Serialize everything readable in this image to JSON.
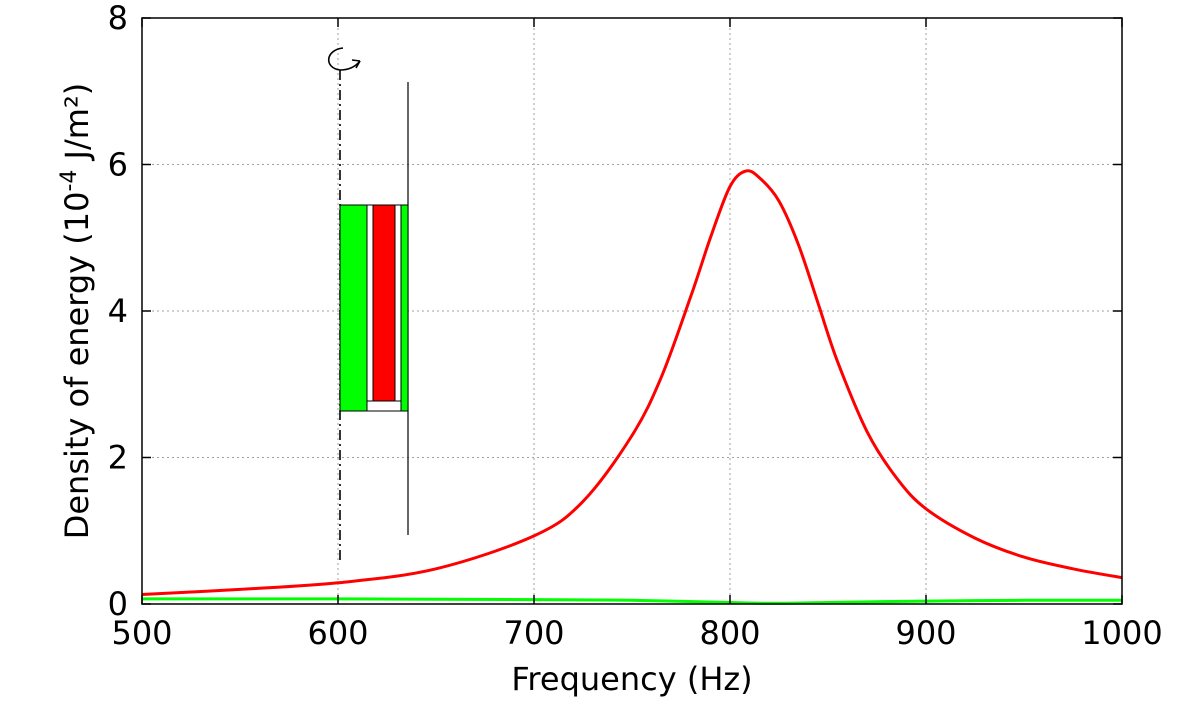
{
  "chart_data": {
    "type": "line",
    "xlabel": "Frequency (Hz)",
    "ylabel": {
      "prefix": "Density of energy (10",
      "exponent": "-4",
      "suffix": " J/m²)"
    },
    "xlim": [
      500,
      1000
    ],
    "ylim": [
      0,
      8
    ],
    "x_ticks": [
      500,
      600,
      700,
      800,
      900,
      1000
    ],
    "y_ticks": [
      0,
      2,
      4,
      6,
      8
    ],
    "grid": true,
    "legend": "none",
    "series": [
      {
        "name": "red",
        "color": "#ff0000",
        "x": [
          500,
          550,
          600,
          650,
          700,
          725,
          750,
          765,
          780,
          790,
          800,
          808,
          815,
          825,
          835,
          845,
          855,
          870,
          885,
          900,
          925,
          950,
          975,
          1000
        ],
        "y": [
          0.13,
          0.2,
          0.29,
          0.48,
          0.93,
          1.4,
          2.3,
          3.1,
          4.2,
          5.0,
          5.7,
          5.91,
          5.82,
          5.5,
          4.9,
          4.1,
          3.3,
          2.35,
          1.72,
          1.3,
          0.9,
          0.64,
          0.48,
          0.36
        ]
      },
      {
        "name": "green",
        "color": "#00ff00",
        "x": [
          500,
          600,
          700,
          750,
          800,
          820,
          850,
          900,
          950,
          1000
        ],
        "y": [
          0.07,
          0.07,
          0.06,
          0.05,
          0.02,
          0.01,
          0.02,
          0.04,
          0.05,
          0.05
        ]
      }
    ],
    "inset": {
      "description": "schematic",
      "colors": {
        "outer": "#00ff00",
        "inner": "#ff0000"
      }
    }
  }
}
